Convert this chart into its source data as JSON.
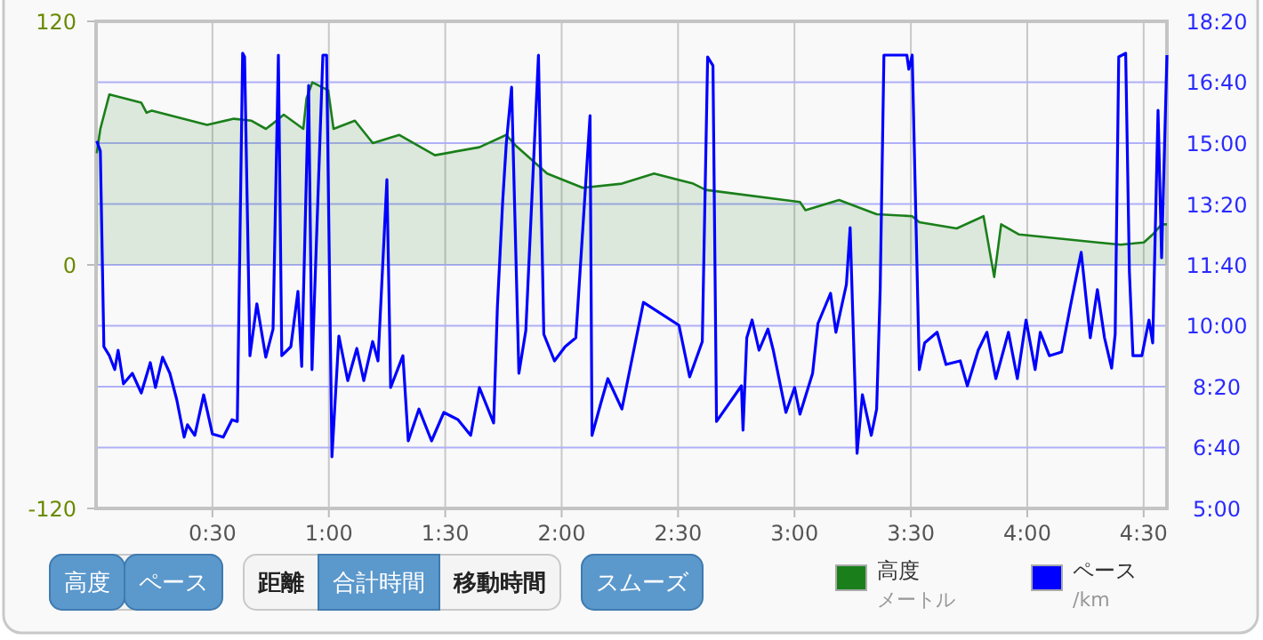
{
  "chart_data": {
    "type": "line",
    "xlim": [
      0,
      4.6
    ],
    "xticks": [
      {
        "value": 0.5,
        "label": "0:30"
      },
      {
        "value": 1,
        "label": "1:00"
      },
      {
        "value": 1.5,
        "label": "1:30"
      },
      {
        "value": 2,
        "label": "2:00"
      },
      {
        "value": 2.5,
        "label": "2:30"
      },
      {
        "value": 3,
        "label": "3:00"
      },
      {
        "value": 3.5,
        "label": "3:30"
      },
      {
        "value": 4,
        "label": "4:00"
      },
      {
        "value": 4.5,
        "label": "4:30"
      }
    ],
    "ylim": [
      -120,
      120
    ],
    "yticks": [
      -120,
      0,
      120
    ],
    "y2lim": [
      5,
      18.3333
    ],
    "y2ticks": [
      {
        "value": 5,
        "label": "5:00"
      },
      {
        "value": 6.6667,
        "label": "6:40"
      },
      {
        "value": 8.3333,
        "label": "8:20"
      },
      {
        "value": 10,
        "label": "10:00"
      },
      {
        "value": 11.6667,
        "label": "11:40"
      },
      {
        "value": 13.3333,
        "label": "13:20"
      },
      {
        "value": 15,
        "label": "15:00"
      },
      {
        "value": 16.6667,
        "label": "16:40"
      },
      {
        "value": 18.3333,
        "label": "18:20"
      }
    ],
    "grid": true,
    "legend": "bottom",
    "marker": "none",
    "series": [
      {
        "name": "高度",
        "type": "area",
        "color": "#1a7f1a",
        "x": [
          0.003,
          0.018,
          0.057,
          0.194,
          0.217,
          0.24,
          0.477,
          0.592,
          0.668,
          0.73,
          0.753,
          0.806,
          0.89,
          0.904,
          0.929,
          0.997,
          1.02,
          1.112,
          1.189,
          1.303,
          1.456,
          1.647,
          1.762,
          1.8,
          1.938,
          2.091,
          2.259,
          2.397,
          2.565,
          2.619,
          3.024,
          3.047,
          3.192,
          3.353,
          3.506,
          3.536,
          3.697,
          3.812,
          3.858,
          3.888,
          3.965,
          4.301,
          4.401,
          4.501,
          4.539,
          4.577,
          4.6
        ],
        "values": [
          55,
          67,
          84,
          80,
          75,
          76,
          69,
          72,
          71,
          67,
          69,
          74,
          67,
          82,
          90,
          86,
          67,
          71,
          60,
          64,
          54,
          58,
          64,
          59,
          45,
          38,
          40,
          45,
          40,
          37,
          31,
          27,
          32,
          25,
          24,
          21,
          18,
          24,
          -6,
          20,
          15,
          11,
          10,
          11,
          15,
          20,
          20
        ]
      },
      {
        "name": "ペース",
        "axis": "y2",
        "color": "#0000ff",
        "x": [
          0.003,
          0.018,
          0.034,
          0.057,
          0.08,
          0.095,
          0.118,
          0.156,
          0.194,
          0.233,
          0.255,
          0.286,
          0.317,
          0.347,
          0.378,
          0.393,
          0.424,
          0.462,
          0.5,
          0.546,
          0.584,
          0.607,
          0.63,
          0.638,
          0.661,
          0.691,
          0.729,
          0.76,
          0.783,
          0.798,
          0.837,
          0.867,
          0.883,
          0.913,
          0.928,
          0.974,
          0.99,
          1.013,
          1.043,
          1.081,
          1.12,
          1.15,
          1.188,
          1.211,
          1.249,
          1.265,
          1.318,
          1.341,
          1.387,
          1.441,
          1.494,
          1.555,
          1.609,
          1.647,
          1.708,
          1.724,
          1.747,
          1.762,
          1.785,
          1.816,
          1.846,
          1.9,
          1.923,
          1.969,
          2.015,
          2.061,
          2.122,
          2.13,
          2.168,
          2.198,
          2.259,
          2.351,
          2.504,
          2.55,
          2.604,
          2.627,
          2.65,
          2.665,
          2.772,
          2.779,
          2.795,
          2.818,
          2.848,
          2.886,
          2.909,
          2.963,
          3.001,
          3.024,
          3.078,
          3.101,
          3.155,
          3.178,
          3.223,
          3.239,
          3.269,
          3.292,
          3.33,
          3.353,
          3.368,
          3.384,
          3.483,
          3.491,
          3.506,
          3.536,
          3.559,
          3.613,
          3.651,
          3.712,
          3.743,
          3.789,
          3.827,
          3.865,
          3.919,
          3.957,
          3.995,
          4.034,
          4.056,
          4.095,
          4.148,
          4.186,
          4.232,
          4.271,
          4.301,
          4.332,
          4.362,
          4.378,
          4.393,
          4.423,
          4.439,
          4.454,
          4.492,
          4.523,
          4.539,
          4.562,
          4.577,
          4.6
        ],
        "values": [
          15.06,
          14.78,
          9.43,
          9.18,
          8.8,
          9.33,
          8.41,
          8.7,
          8.16,
          8.99,
          8.31,
          9.14,
          8.7,
          7.97,
          6.95,
          7.29,
          7.0,
          8.11,
          7.04,
          6.95,
          7.43,
          7.38,
          17.46,
          17.36,
          9.18,
          10.6,
          9.14,
          9.91,
          17.41,
          9.18,
          9.43,
          10.94,
          8.89,
          16.58,
          8.8,
          17.41,
          17.41,
          6.41,
          9.72,
          8.5,
          9.38,
          8.5,
          9.57,
          9.04,
          14.0,
          8.31,
          9.18,
          6.85,
          7.72,
          6.85,
          7.63,
          7.43,
          7.0,
          8.31,
          7.34,
          10.5,
          13.42,
          14.98,
          16.53,
          8.7,
          9.87,
          17.41,
          9.77,
          9.04,
          9.43,
          9.67,
          15.75,
          7.0,
          7.87,
          8.55,
          7.72,
          10.64,
          10.01,
          8.6,
          9.57,
          17.36,
          17.12,
          7.38,
          8.36,
          7.14,
          9.67,
          10.16,
          9.33,
          9.91,
          9.33,
          7.63,
          8.31,
          7.58,
          8.7,
          10.06,
          10.89,
          9.82,
          11.13,
          12.69,
          6.51,
          8.11,
          7.0,
          7.72,
          10.99,
          17.41,
          17.41,
          17.02,
          17.41,
          8.8,
          9.53,
          9.82,
          8.94,
          9.04,
          8.36,
          9.33,
          9.82,
          8.55,
          9.82,
          8.55,
          10.16,
          8.8,
          9.82,
          9.18,
          9.28,
          10.55,
          12.01,
          9.67,
          10.99,
          9.67,
          8.84,
          9.77,
          17.36,
          17.46,
          11.47,
          9.18,
          9.18,
          10.16,
          9.53,
          15.9,
          11.86,
          17.41
        ]
      }
    ],
    "annotations": [
      "高度",
      "ペース",
      "距離",
      "合計時間",
      "移動時間",
      "スムーズ",
      "メートル",
      "/km"
    ]
  }
}
